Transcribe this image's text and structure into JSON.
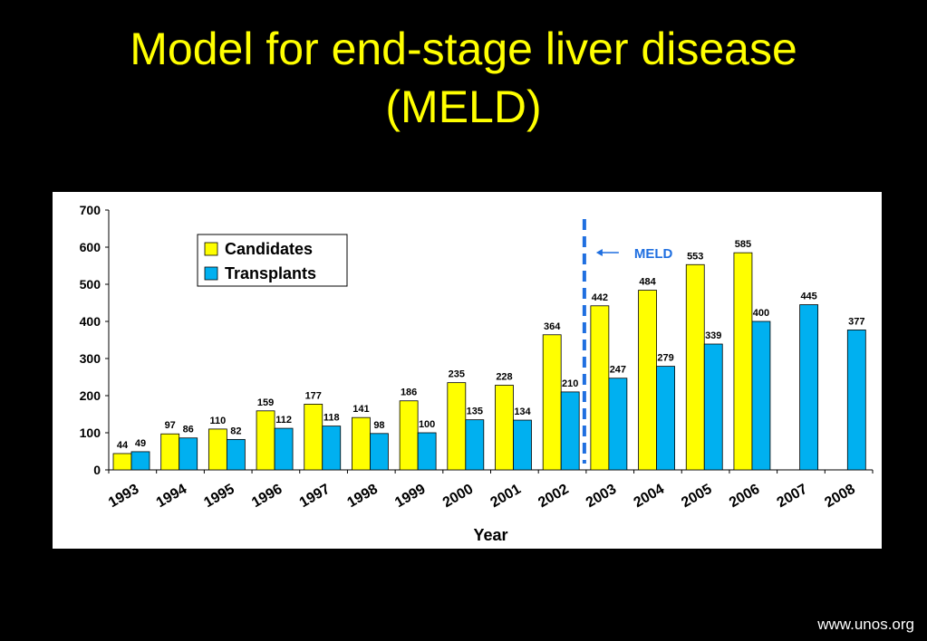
{
  "slide": {
    "title_line1": "Model for end-stage liver disease",
    "title_line2": "(MELD)",
    "source": "www.unos.org",
    "title_color": "#FFFF00",
    "background_color": "#000000"
  },
  "chart_data": {
    "type": "bar",
    "title": "",
    "xlabel": "Year",
    "ylabel": "",
    "ylim": [
      0,
      700
    ],
    "yticks": [
      0,
      100,
      200,
      300,
      400,
      500,
      600,
      700
    ],
    "grid": false,
    "legend_position": "top-left",
    "categories": [
      "1993",
      "1994",
      "1995",
      "1996",
      "1997",
      "1998",
      "1999",
      "2000",
      "2001",
      "2002",
      "2003",
      "2004",
      "2005",
      "2006",
      "2007",
      "2008"
    ],
    "series": [
      {
        "name": "Candidates",
        "color": "#FFFF00",
        "values": [
          44,
          97,
          110,
          159,
          177,
          141,
          186,
          235,
          228,
          364,
          442,
          484,
          553,
          585,
          null,
          null
        ]
      },
      {
        "name": "Transplants",
        "color": "#00B0F0",
        "values": [
          49,
          86,
          82,
          112,
          118,
          98,
          100,
          135,
          134,
          210,
          247,
          279,
          339,
          400,
          445,
          377
        ]
      }
    ],
    "annotations": [
      {
        "text": "MELD",
        "type": "vertical-dashed-line",
        "between": [
          "2002",
          "2003"
        ],
        "color": "#1F6FE0"
      }
    ]
  }
}
